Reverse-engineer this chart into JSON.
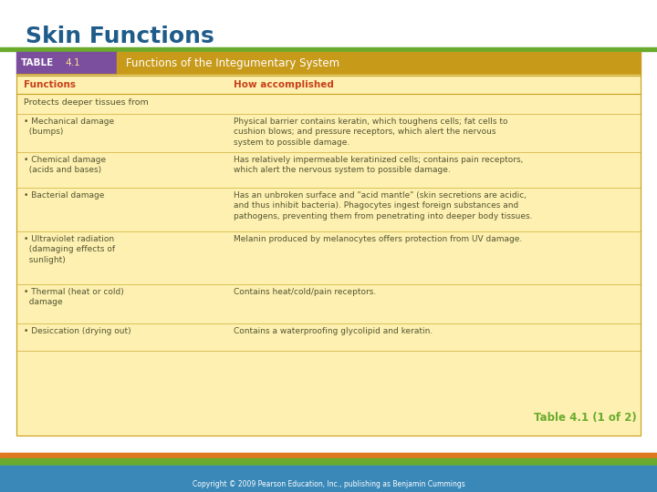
{
  "title": "Skin Functions",
  "title_color": "#1F5C8B",
  "title_fontsize": 18,
  "bg_color": "#FFFFFF",
  "green_line_color": "#6AAB2E",
  "table_header_left_color": "#7B4E9E",
  "table_header_right_color": "#C89A1A",
  "table_header_title": "Functions of the Integumentary System",
  "col1_header": "Functions",
  "col2_header": "How accomplished",
  "col_header_fontcolor": "#C8401A",
  "table_bg": "#FDF0B0",
  "table_border_color": "#C8A020",
  "section_header": "Protects deeper tissues from",
  "rows": [
    {
      "func": "• Mechanical damage\n  (bumps)",
      "how": "Physical barrier contains keratin, which toughens cells; fat cells to\ncushion blows; and pressure receptors, which alert the nervous\nsystem to possible damage."
    },
    {
      "func": "• Chemical damage\n  (acids and bases)",
      "how": "Has relatively impermeable keratinized cells; contains pain receptors,\nwhich alert the nervous system to possible damage."
    },
    {
      "func": "• Bacterial damage",
      "how": "Has an unbroken surface and \"acid mantle\" (skin secretions are acidic,\nand thus inhibit bacteria). Phagocytes ingest foreign substances and\npathogens, preventing them from penetrating into deeper body tissues."
    },
    {
      "func": "• Ultraviolet radiation\n  (damaging effects of\n  sunlight)",
      "how": "Melanin produced by melanocytes offers protection from UV damage."
    },
    {
      "func": "• Thermal (heat or cold)\n  damage",
      "how": "Contains heat/cold/pain receptors."
    },
    {
      "func": "• Desiccation (drying out)",
      "how": "Contains a waterproofing glycolipid and keratin."
    }
  ],
  "caption": "Table 4.1 (1 of 2)",
  "caption_color": "#6AAB2E",
  "footer_text": "Copyright © 2009 Pearson Education, Inc., publishing as Benjamin Cummings",
  "footer_color": "#FFFFFF",
  "footer_bg": "#3A88B8",
  "stripe1_color": "#E07820",
  "stripe2_color": "#6AAB2E",
  "stripe3_color": "#3A88B8",
  "text_color": "#555533"
}
